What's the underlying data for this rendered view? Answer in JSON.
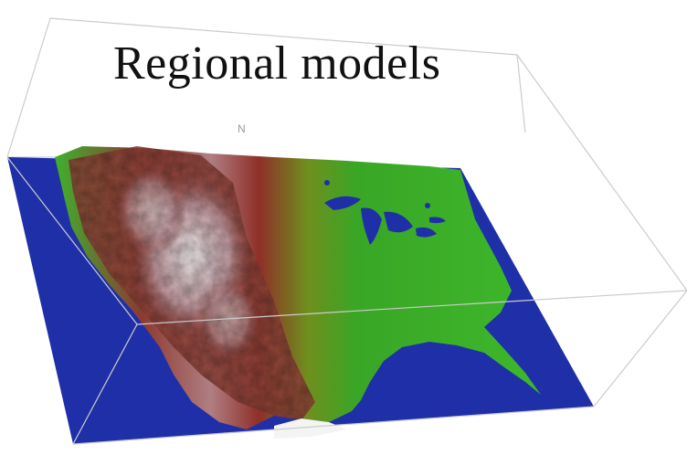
{
  "title": "Regional models",
  "north_label": "N",
  "colors": {
    "ocean": "#1f2fa8",
    "lowland": "#2fb02a",
    "midland": "#8a7a1f",
    "highland": "#8a2f28",
    "peak": "#e8e0e4",
    "box_edge": "#c8c8c8"
  }
}
